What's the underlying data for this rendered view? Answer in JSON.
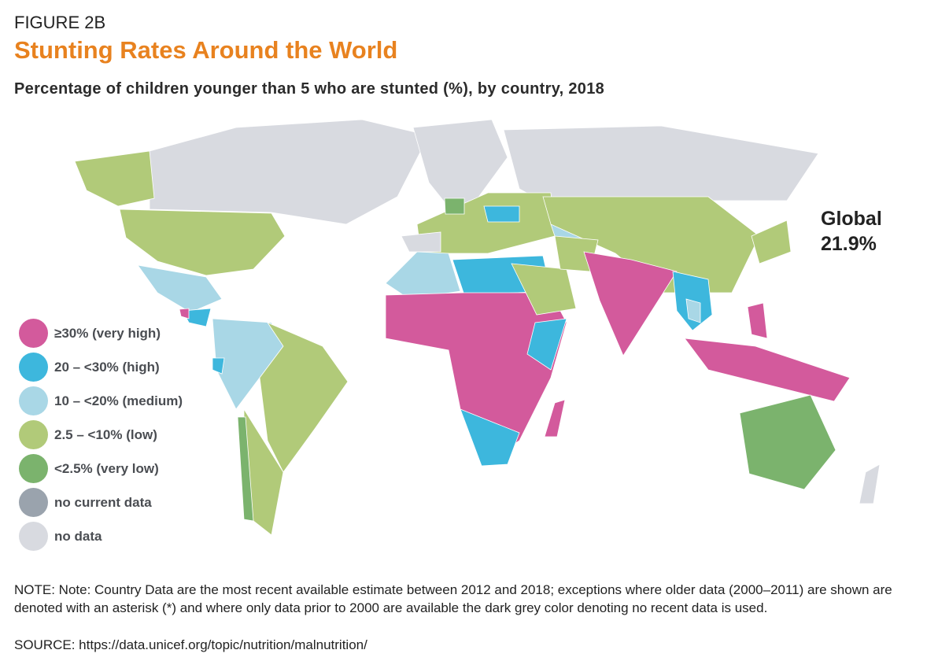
{
  "figure_label": "FIGURE 2B",
  "title": "Stunting Rates Around the World",
  "subtitle": "Percentage of children younger than 5 who are stunted (%), by country, 2018",
  "global": {
    "label": "Global",
    "value": "21.9%"
  },
  "legend": [
    {
      "label": "≥30% (very high)",
      "color": "#d35a9c"
    },
    {
      "label": "20 – <30% (high)",
      "color": "#3db7dd"
    },
    {
      "label": "10 – <20% (medium)",
      "color": "#a9d7e6"
    },
    {
      "label": "2.5 – <10% (low)",
      "color": "#b1ca79"
    },
    {
      "label": "<2.5% (very low)",
      "color": "#7bb36d"
    },
    {
      "label": "no current data",
      "color": "#9aa3ad"
    },
    {
      "label": "no data",
      "color": "#d8dae0"
    }
  ],
  "note": "NOTE: Note: Country Data are the most recent available estimate between 2012 and 2018; exceptions where older data (2000–2011) are shown are denoted with an asterisk (*) and where only data prior to 2000 are available the dark grey color denoting no recent data is used.",
  "source": "SOURCE: https://data.unicef.org/topic/nutrition/malnutrition/"
}
